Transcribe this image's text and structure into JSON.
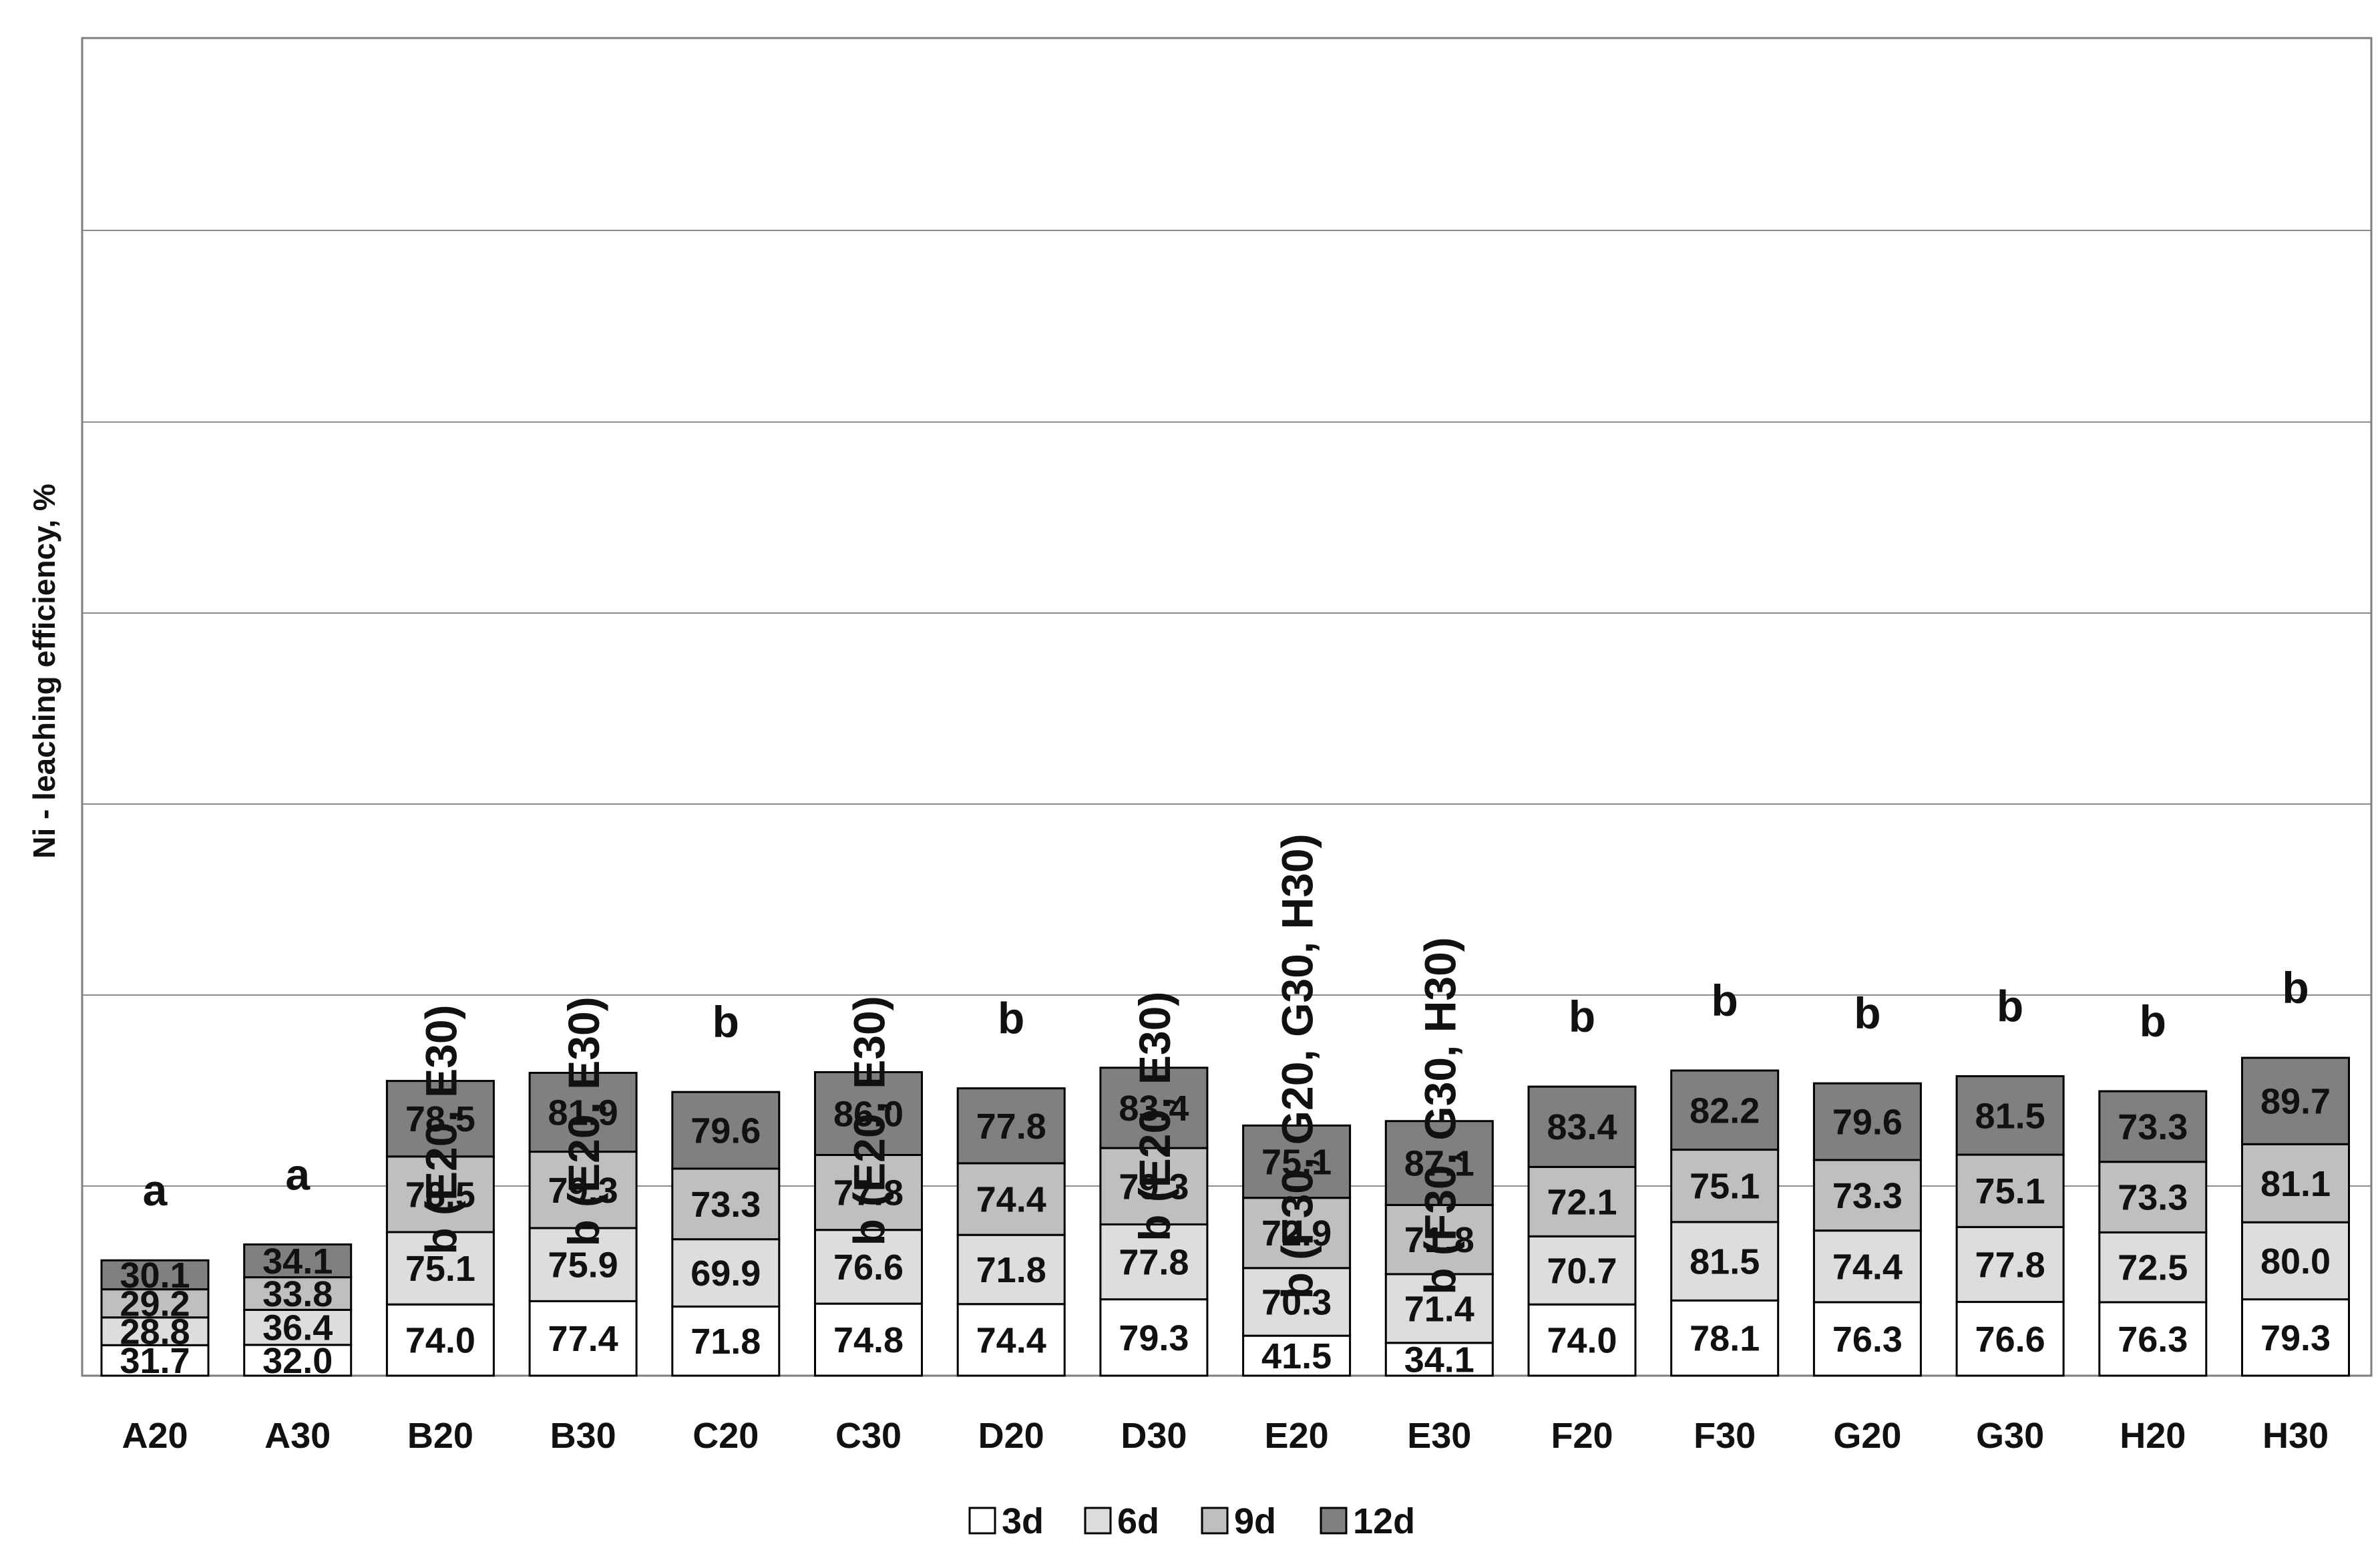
{
  "chart_data": {
    "type": "bar",
    "stacked": true,
    "title": "",
    "xlabel": "",
    "ylabel": "Ni - leaching efficiency, %",
    "categories": [
      "A20",
      "A30",
      "B20",
      "B30",
      "C20",
      "C30",
      "D20",
      "D30",
      "E20",
      "E30",
      "F20",
      "F30",
      "G20",
      "G30",
      "H20",
      "H30"
    ],
    "series": [
      {
        "name": "3d",
        "color": "#ffffff",
        "values": [
          31.7,
          32.0,
          74.0,
          77.4,
          71.8,
          74.8,
          74.4,
          79.3,
          41.5,
          34.1,
          74.0,
          78.1,
          76.3,
          76.6,
          76.3,
          79.3
        ]
      },
      {
        "name": "6d",
        "color": "#dddddd",
        "values": [
          28.8,
          36.4,
          75.1,
          75.9,
          69.9,
          76.6,
          71.8,
          77.8,
          70.3,
          71.4,
          70.7,
          81.5,
          74.4,
          77.8,
          72.5,
          80.0
        ]
      },
      {
        "name": "9d",
        "color": "#bfbfbf",
        "values": [
          29.2,
          33.8,
          78.5,
          79.3,
          73.3,
          77.8,
          74.4,
          79.3,
          72.9,
          71.8,
          72.1,
          75.1,
          73.3,
          75.1,
          73.3,
          81.1
        ]
      },
      {
        "name": "12d",
        "color": "#808080",
        "values": [
          30.1,
          34.1,
          78.5,
          81.9,
          79.6,
          86.0,
          77.8,
          83.4,
          75.1,
          87.1,
          83.4,
          82.2,
          79.6,
          81.5,
          73.3,
          89.7
        ]
      }
    ],
    "significance": [
      "a",
      "a",
      "b (E20, E30)",
      "b (E20, E30)",
      "b",
      "b (E20, E30)",
      "b",
      "b (E20, E30)",
      "b (F30, G20, G30, H30)",
      "b (F30, G30, H30)",
      "b",
      "b",
      "b",
      "b",
      "b",
      "b"
    ],
    "ylim": [
      0,
      360
    ],
    "grid": true,
    "legend_position": "bottom-center"
  }
}
